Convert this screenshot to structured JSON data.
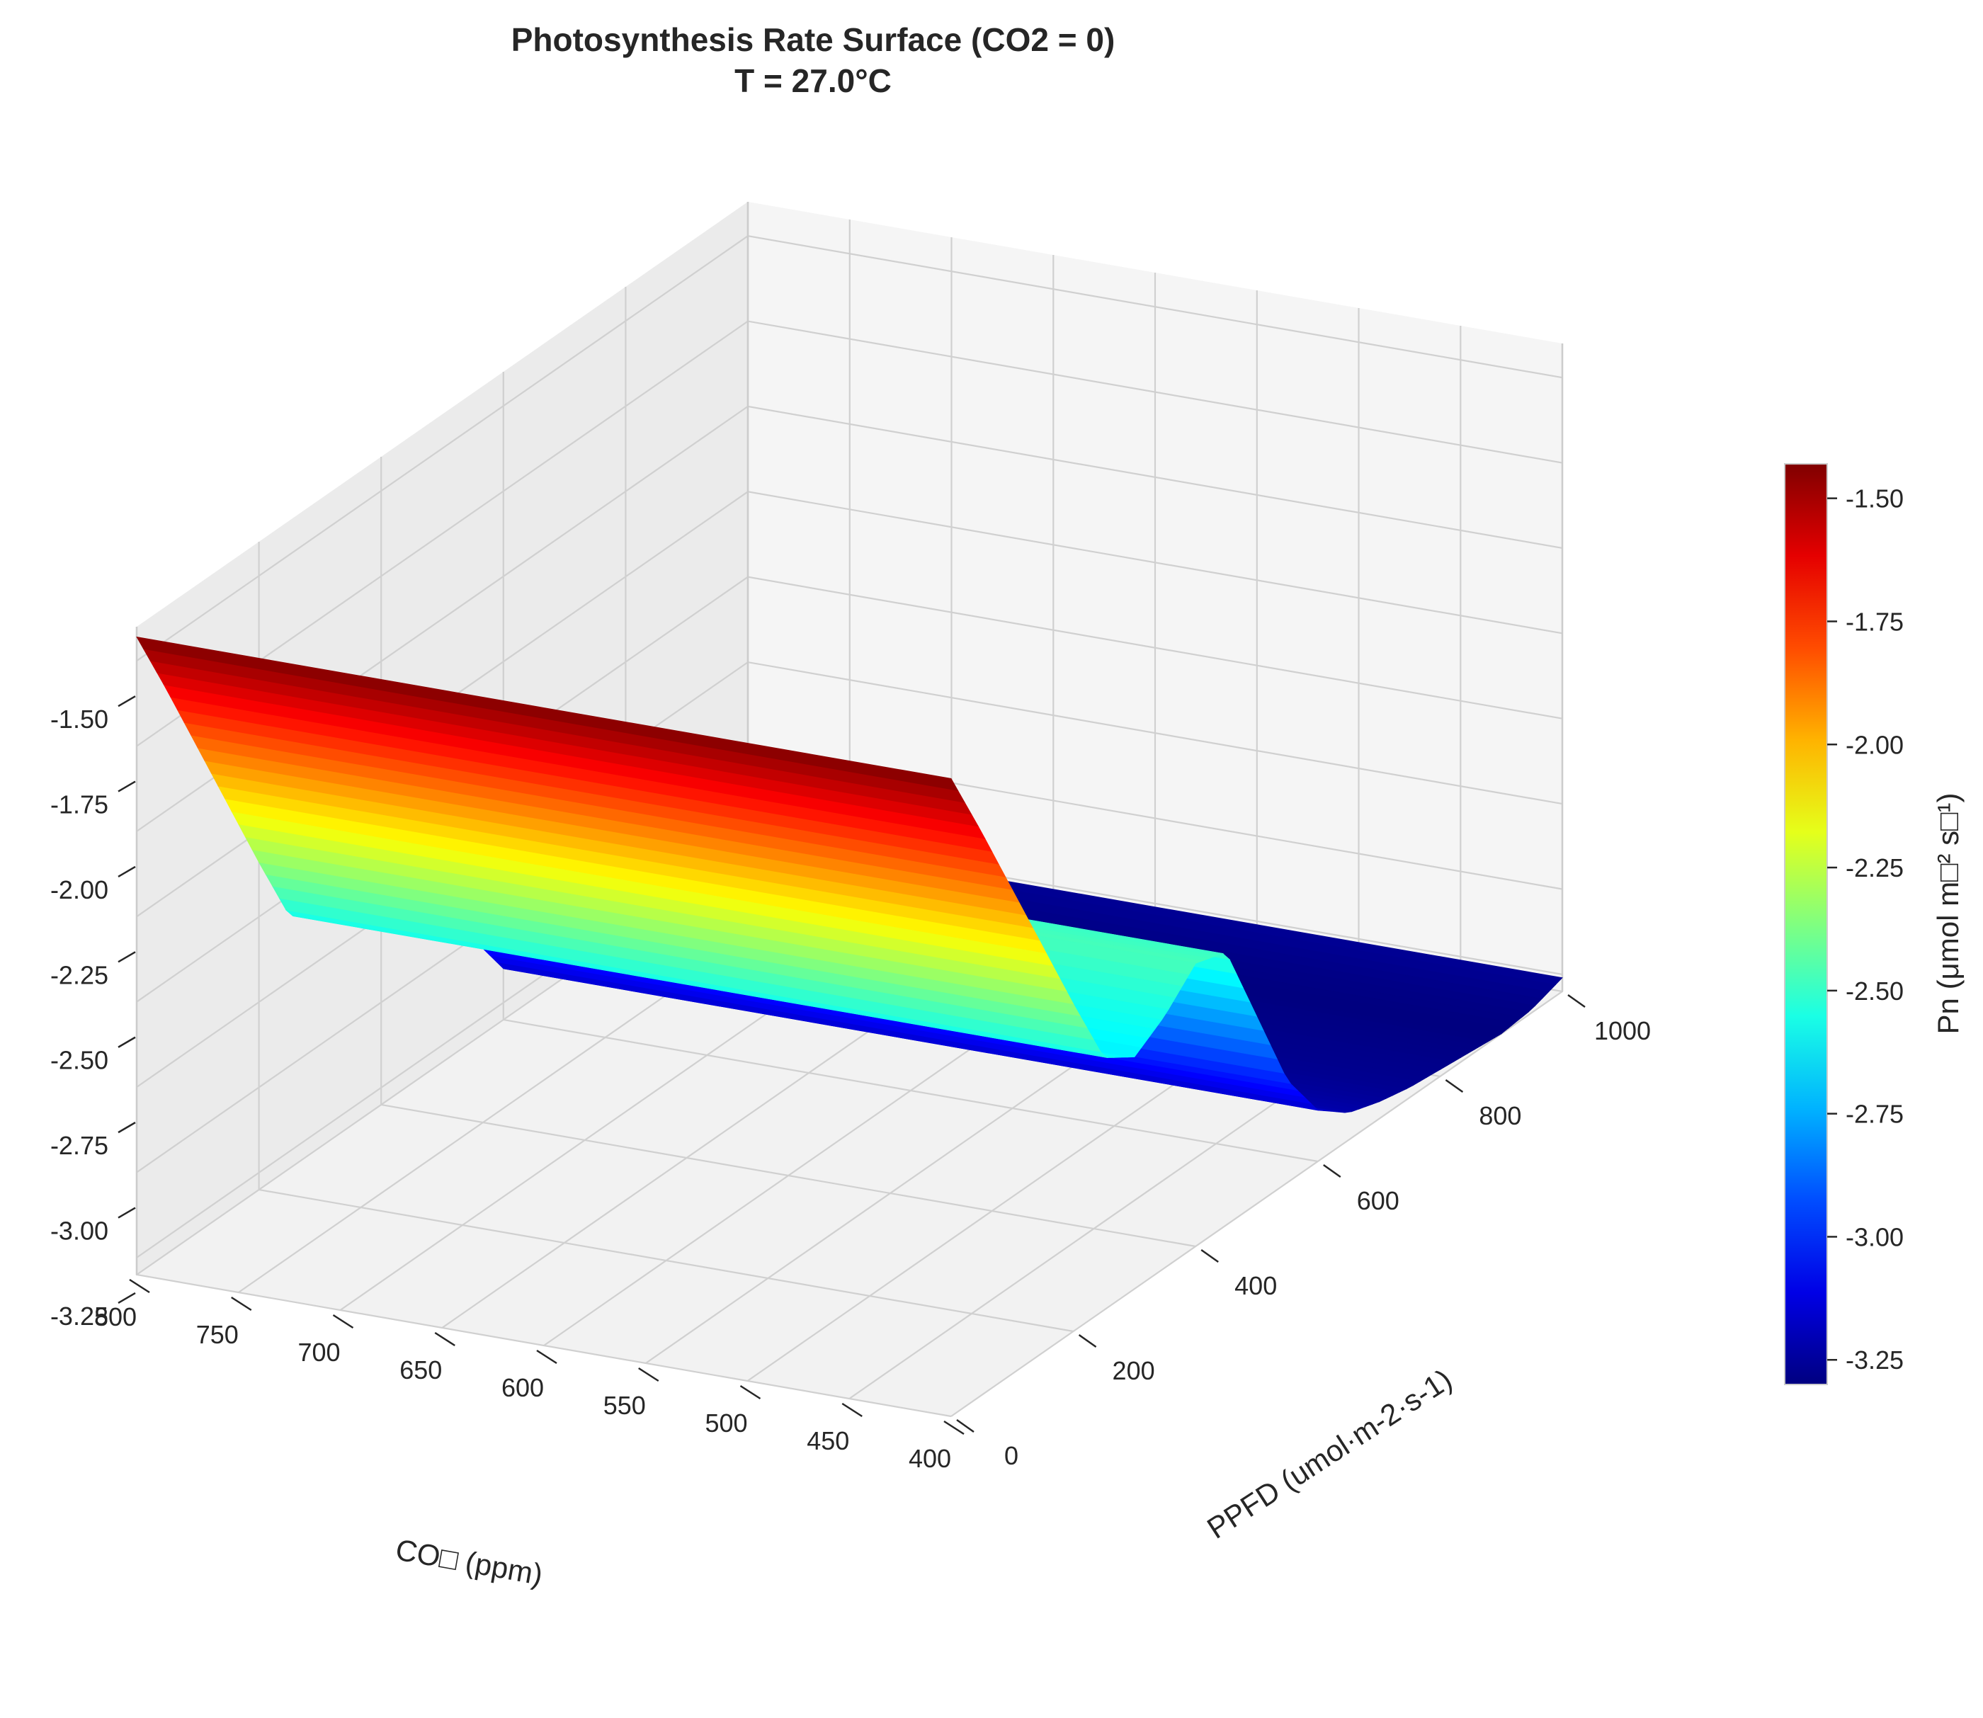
{
  "chart_data": {
    "type": "surface3d",
    "title_line1": "Photosynthesis Rate Surface (CO2 = 0)",
    "title_line2": "T = 27.0°C",
    "xlabel": "CO□ (ppm)",
    "ylabel": "PPFD (umol·m-2·s-1)",
    "zlabel": "",
    "colorbar_label": "Pn (μmol m□² s□¹)",
    "colormap": "jet",
    "xlim": [
      400,
      800
    ],
    "ylim": [
      0,
      1000
    ],
    "zlim": [
      -3.3,
      -1.4
    ],
    "x_ticks": [
      "800",
      "750",
      "700",
      "650",
      "600",
      "550",
      "500",
      "450",
      "400"
    ],
    "x_tick_values": [
      800,
      750,
      700,
      650,
      600,
      550,
      500,
      450,
      400
    ],
    "y_ticks": [
      "0",
      "200",
      "400",
      "600",
      "800",
      "1000"
    ],
    "y_tick_values": [
      0,
      200,
      400,
      600,
      800,
      1000
    ],
    "z_ticks": [
      "-1.50",
      "-1.75",
      "-2.00",
      "-2.25",
      "-2.50",
      "-2.75",
      "-3.00",
      "-3.25"
    ],
    "z_tick_values": [
      -1.5,
      -1.75,
      -2.0,
      -2.25,
      -2.5,
      -2.75,
      -3.0,
      -3.25
    ],
    "colorbar_ticks": [
      "-1.50",
      "-1.75",
      "-2.00",
      "-2.25",
      "-2.50",
      "-2.75",
      "-3.00",
      "-3.25"
    ],
    "colorbar_tick_values": [
      -1.5,
      -1.75,
      -2.0,
      -2.25,
      -2.5,
      -2.75,
      -3.0,
      -3.25
    ],
    "colorbar_range": [
      -3.3,
      -1.43
    ],
    "profile_ppfd": [
      0,
      50,
      100,
      150,
      200,
      250,
      300,
      350,
      400,
      450,
      500,
      550,
      600,
      650,
      700,
      750,
      800,
      850,
      900,
      950,
      1000
    ],
    "profile_pn": [
      -1.43,
      -1.65,
      -1.88,
      -2.11,
      -2.34,
      -2.56,
      -2.62,
      -2.56,
      -2.47,
      -2.5,
      -2.75,
      -3.0,
      -3.15,
      -3.22,
      -3.25,
      -3.27,
      -3.28,
      -3.29,
      -3.3,
      -3.29,
      -3.26
    ],
    "grid": true,
    "colorbar_placement": "right"
  }
}
